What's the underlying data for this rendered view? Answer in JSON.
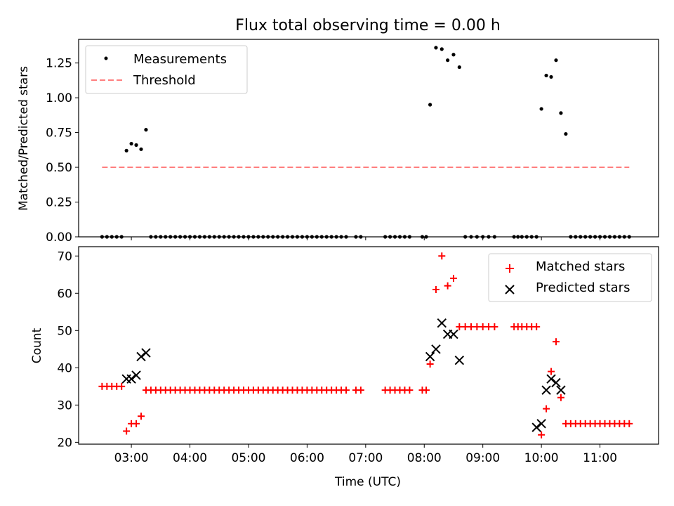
{
  "chart_data": [
    {
      "type": "scatter",
      "title": "Flux total observing time = 0.00 h",
      "ylabel": "Matched/Predicted stars",
      "xlim": [
        "02:06",
        "12:00"
      ],
      "ylim": [
        0,
        1.42
      ],
      "yticks": [
        "0.00",
        "0.25",
        "0.50",
        "0.75",
        "1.00",
        "1.25"
      ],
      "ytick_values": [
        0,
        0.25,
        0.5,
        0.75,
        1.0,
        1.25
      ],
      "legend_position": "upper-left",
      "series": [
        {
          "name": "Measurements",
          "marker": "dot",
          "color": "#000000",
          "x": [
            "02:30",
            "02:35",
            "02:40",
            "02:45",
            "02:50",
            "02:55",
            "03:00",
            "03:05",
            "03:10",
            "03:15",
            "03:20",
            "03:25",
            "03:30",
            "03:35",
            "03:40",
            "03:45",
            "03:50",
            "03:55",
            "04:00",
            "04:05",
            "04:10",
            "04:15",
            "04:20",
            "04:25",
            "04:30",
            "04:35",
            "04:40",
            "04:45",
            "04:50",
            "04:55",
            "05:00",
            "05:05",
            "05:10",
            "05:15",
            "05:20",
            "05:25",
            "05:30",
            "05:35",
            "05:40",
            "05:45",
            "05:50",
            "05:55",
            "06:00",
            "06:05",
            "06:10",
            "06:15",
            "06:20",
            "06:25",
            "06:30",
            "06:35",
            "06:40",
            "06:50",
            "06:55",
            "07:20",
            "07:25",
            "07:30",
            "07:35",
            "07:40",
            "07:45",
            "07:58",
            "08:02",
            "08:06",
            "08:12",
            "08:18",
            "08:24",
            "08:30",
            "08:36",
            "08:42",
            "08:48",
            "08:54",
            "09:00",
            "09:06",
            "09:12",
            "09:32",
            "09:36",
            "09:40",
            "09:45",
            "09:50",
            "09:55",
            "10:00",
            "10:05",
            "10:10",
            "10:15",
            "10:20",
            "10:25",
            "10:30",
            "10:35",
            "10:40",
            "10:45",
            "10:50",
            "10:55",
            "11:00",
            "11:05",
            "11:10",
            "11:15",
            "11:20",
            "11:25",
            "11:30"
          ],
          "y": [
            0,
            0,
            0,
            0,
            0,
            0.62,
            0.67,
            0.66,
            0.63,
            0.77,
            0,
            0,
            0,
            0,
            0,
            0,
            0,
            0,
            0,
            0,
            0,
            0,
            0,
            0,
            0,
            0,
            0,
            0,
            0,
            0,
            0,
            0,
            0,
            0,
            0,
            0,
            0,
            0,
            0,
            0,
            0,
            0,
            0,
            0,
            0,
            0,
            0,
            0,
            0,
            0,
            0,
            0,
            0,
            0,
            0,
            0,
            0,
            0,
            0,
            0,
            0,
            0.95,
            1.36,
            1.35,
            1.27,
            1.31,
            1.22,
            0,
            0,
            0,
            0,
            0,
            0,
            0,
            0,
            0,
            0,
            0,
            0,
            0.92,
            1.16,
            1.15,
            1.27,
            0.89,
            0.74,
            0,
            0,
            0,
            0,
            0,
            0,
            0,
            0,
            0,
            0,
            0,
            0,
            0
          ]
        },
        {
          "name": "Threshold",
          "style": "dashed",
          "color": "#ff7f7f",
          "x": [
            "02:30",
            "11:30"
          ],
          "y": [
            0.5,
            0.5
          ]
        }
      ]
    },
    {
      "type": "scatter",
      "xlabel": "Time (UTC)",
      "ylabel": "Count",
      "xlim": [
        "02:06",
        "12:00"
      ],
      "ylim": [
        19.5,
        72.5
      ],
      "xticks": [
        "03:00",
        "04:00",
        "05:00",
        "06:00",
        "07:00",
        "08:00",
        "09:00",
        "10:00",
        "11:00"
      ],
      "yticks": [
        "20",
        "30",
        "40",
        "50",
        "60",
        "70"
      ],
      "ytick_values": [
        20,
        30,
        40,
        50,
        60,
        70
      ],
      "legend_position": "upper-right",
      "series": [
        {
          "name": "Matched stars",
          "marker": "plus",
          "color": "#ff0000",
          "x": [
            "02:30",
            "02:35",
            "02:40",
            "02:45",
            "02:50",
            "02:55",
            "03:00",
            "03:05",
            "03:10",
            "03:15",
            "03:20",
            "03:25",
            "03:30",
            "03:35",
            "03:40",
            "03:45",
            "03:50",
            "03:55",
            "04:00",
            "04:05",
            "04:10",
            "04:15",
            "04:20",
            "04:25",
            "04:30",
            "04:35",
            "04:40",
            "04:45",
            "04:50",
            "04:55",
            "05:00",
            "05:05",
            "05:10",
            "05:15",
            "05:20",
            "05:25",
            "05:30",
            "05:35",
            "05:40",
            "05:45",
            "05:50",
            "05:55",
            "06:00",
            "06:05",
            "06:10",
            "06:15",
            "06:20",
            "06:25",
            "06:30",
            "06:35",
            "06:40",
            "06:50",
            "06:55",
            "07:20",
            "07:25",
            "07:30",
            "07:35",
            "07:40",
            "07:45",
            "07:58",
            "08:02",
            "08:06",
            "08:12",
            "08:18",
            "08:24",
            "08:30",
            "08:36",
            "08:42",
            "08:48",
            "08:54",
            "09:00",
            "09:06",
            "09:12",
            "09:32",
            "09:36",
            "09:40",
            "09:45",
            "09:50",
            "09:55",
            "10:00",
            "10:05",
            "10:10",
            "10:15",
            "10:20",
            "10:25",
            "10:30",
            "10:35",
            "10:40",
            "10:45",
            "10:50",
            "10:55",
            "11:00",
            "11:05",
            "11:10",
            "11:15",
            "11:20",
            "11:25",
            "11:30"
          ],
          "y": [
            35,
            35,
            35,
            35,
            35,
            23,
            25,
            25,
            27,
            34,
            34,
            34,
            34,
            34,
            34,
            34,
            34,
            34,
            34,
            34,
            34,
            34,
            34,
            34,
            34,
            34,
            34,
            34,
            34,
            34,
            34,
            34,
            34,
            34,
            34,
            34,
            34,
            34,
            34,
            34,
            34,
            34,
            34,
            34,
            34,
            34,
            34,
            34,
            34,
            34,
            34,
            34,
            34,
            34,
            34,
            34,
            34,
            34,
            34,
            34,
            34,
            41,
            61,
            70,
            62,
            64,
            51,
            51,
            51,
            51,
            51,
            51,
            51,
            51,
            51,
            51,
            51,
            51,
            51,
            22,
            29,
            39,
            47,
            32,
            25,
            25,
            25,
            25,
            25,
            25,
            25,
            25,
            25,
            25,
            25,
            25,
            25,
            25
          ]
        },
        {
          "name": "Predicted stars",
          "marker": "x",
          "color": "#000000",
          "x": [
            "02:55",
            "03:00",
            "03:05",
            "03:10",
            "03:15",
            "08:06",
            "08:12",
            "08:18",
            "08:24",
            "08:30",
            "08:36",
            "09:55",
            "10:00",
            "10:05",
            "10:10",
            "10:15",
            "10:20"
          ],
          "y": [
            37,
            37,
            38,
            43,
            44,
            43,
            45,
            52,
            49,
            49,
            42,
            24,
            25,
            34,
            37,
            36,
            34
          ]
        }
      ]
    }
  ]
}
